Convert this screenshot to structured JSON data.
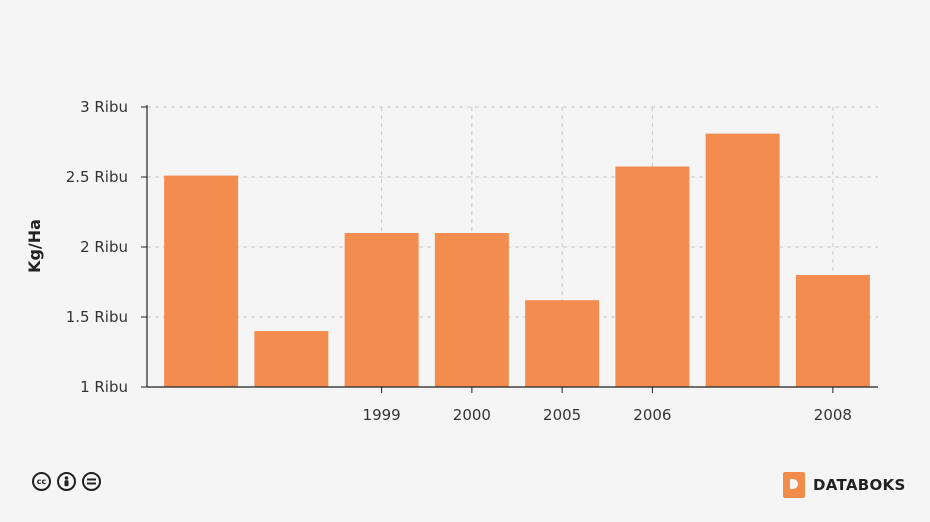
{
  "chart_data": {
    "type": "bar",
    "categories": [
      "",
      "",
      "1999",
      "2000",
      "2005",
      "2006",
      "",
      "2008"
    ],
    "values": [
      2510,
      1400,
      2100,
      2100,
      1620,
      2575,
      2810,
      1800
    ],
    "ylabel": "Kg/Ha",
    "ylim": [
      1000,
      3000
    ],
    "yticks": [
      {
        "value": 1000,
        "label": "1 Ribu"
      },
      {
        "value": 1500,
        "label": "1.5 Ribu"
      },
      {
        "value": 2000,
        "label": "2 Ribu"
      },
      {
        "value": 2500,
        "label": "2.5 Ribu"
      },
      {
        "value": 3000,
        "label": "3 Ribu"
      }
    ],
    "grid": true,
    "bar_color": "#f28c4f"
  },
  "footer": {
    "license_icons": [
      "cc-icon",
      "by-icon",
      "nd-icon"
    ],
    "brand": "DATABOKS",
    "brand_color": "#f28c4a"
  }
}
